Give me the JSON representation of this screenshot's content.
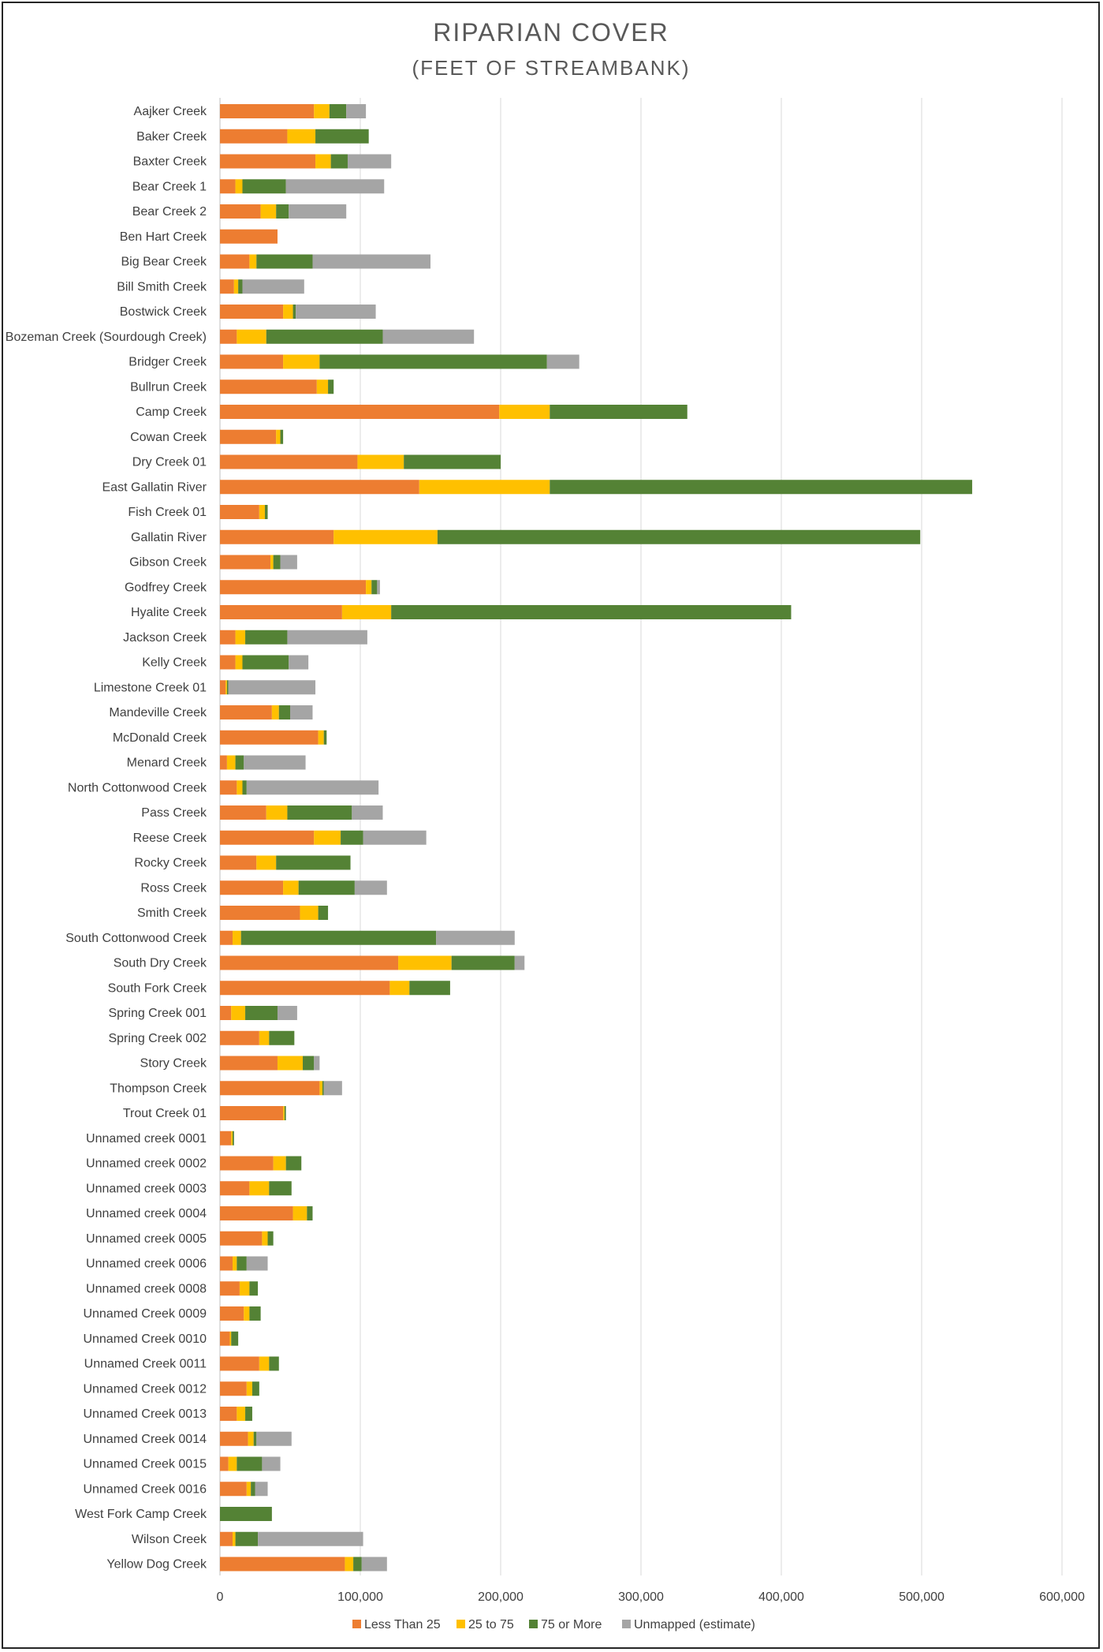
{
  "chart_data": {
    "type": "bar",
    "orientation": "horizontal",
    "stacked": true,
    "title": "RIPARIAN COVER",
    "subtitle": "(FEET OF STREAMBANK)",
    "xlabel": "",
    "ylabel": "",
    "xlim": [
      0,
      600000
    ],
    "x_ticks": [
      0,
      100000,
      200000,
      300000,
      400000,
      500000,
      600000
    ],
    "x_tick_labels": [
      "0",
      "100,000",
      "200,000",
      "300,000",
      "400,000",
      "500,000",
      "600,000"
    ],
    "grid": "vertical",
    "legend_position": "bottom",
    "categories": [
      "Aajker Creek",
      "Baker Creek",
      "Baxter Creek",
      "Bear Creek 1",
      "Bear Creek 2",
      "Ben Hart Creek",
      "Big Bear Creek",
      "Bill Smith Creek",
      "Bostwick Creek",
      "Bozeman Creek (Sourdough Creek)",
      "Bridger Creek",
      "Bullrun Creek",
      "Camp Creek",
      "Cowan Creek",
      "Dry Creek 01",
      "East Gallatin River",
      "Fish Creek 01",
      "Gallatin River",
      "Gibson Creek",
      "Godfrey Creek",
      "Hyalite Creek",
      "Jackson Creek",
      "Kelly Creek",
      "Limestone Creek 01",
      "Mandeville Creek",
      "McDonald Creek",
      "Menard Creek",
      "North Cottonwood Creek",
      "Pass Creek",
      "Reese Creek",
      "Rocky Creek",
      "Ross Creek",
      "Smith Creek",
      "South Cottonwood Creek",
      "South Dry Creek",
      "South Fork Creek",
      "Spring Creek 001",
      "Spring Creek 002",
      "Story Creek",
      "Thompson Creek",
      "Trout Creek 01",
      "Unnamed creek 0001",
      "Unnamed creek 0002",
      "Unnamed creek 0003",
      "Unnamed creek 0004",
      "Unnamed creek 0005",
      "Unnamed creek 0006",
      "Unnamed creek 0008",
      "Unnamed Creek 0009",
      "Unnamed Creek 0010",
      "Unnamed Creek 0011",
      "Unnamed Creek 0012",
      "Unnamed Creek 0013",
      "Unnamed Creek 0014",
      "Unnamed Creek 0015",
      "Unnamed Creek 0016",
      "West Fork Camp Creek",
      "Wilson Creek",
      "Yellow Dog Creek"
    ],
    "series": [
      {
        "name": "Less Than 25",
        "color": "#ED7D31",
        "values": [
          67000,
          48000,
          68000,
          11000,
          29000,
          41000,
          21000,
          10000,
          45000,
          12000,
          45000,
          69000,
          199000,
          40000,
          98000,
          142000,
          28000,
          81000,
          36000,
          104000,
          87000,
          11000,
          11000,
          4000,
          37000,
          70000,
          5000,
          12000,
          33000,
          67000,
          26000,
          45000,
          57000,
          9000,
          127000,
          121000,
          8000,
          28000,
          41000,
          71000,
          45000,
          8000,
          38000,
          21000,
          52000,
          30000,
          9000,
          14000,
          17000,
          7000,
          28000,
          19000,
          12000,
          20000,
          6000,
          19000,
          0,
          9000,
          89000
        ]
      },
      {
        "name": "25 to 75",
        "color": "#FFC000",
        "values": [
          11000,
          20000,
          11000,
          5000,
          11000,
          0,
          5000,
          3000,
          7000,
          21000,
          26000,
          8000,
          36000,
          3000,
          33000,
          93000,
          4000,
          74000,
          2000,
          4000,
          35000,
          7000,
          5000,
          1000,
          5000,
          4000,
          6000,
          4000,
          15000,
          19000,
          14000,
          11000,
          13000,
          6000,
          38000,
          14000,
          10000,
          7000,
          18000,
          2000,
          1000,
          1000,
          9000,
          14000,
          10000,
          4000,
          3000,
          7000,
          4000,
          1000,
          7000,
          4000,
          6000,
          4000,
          6000,
          3000,
          0,
          2000,
          6000
        ]
      },
      {
        "name": "75 or More",
        "color": "#548235",
        "values": [
          12000,
          38000,
          12000,
          31000,
          9000,
          0,
          40000,
          3000,
          2000,
          83000,
          162000,
          4000,
          98000,
          2000,
          69000,
          301000,
          2000,
          344000,
          5000,
          4000,
          285000,
          30000,
          33000,
          1000,
          8000,
          2000,
          6000,
          3000,
          46000,
          16000,
          53000,
          40000,
          7000,
          139000,
          45000,
          29000,
          23000,
          18000,
          8000,
          1000,
          1000,
          1000,
          11000,
          16000,
          4000,
          4000,
          7000,
          6000,
          8000,
          5000,
          7000,
          5000,
          5000,
          2000,
          18000,
          3000,
          37000,
          16000,
          6000
        ]
      },
      {
        "name": "Unmapped (estimate)",
        "color": "#A5A5A5",
        "values": [
          14000,
          0,
          31000,
          70000,
          41000,
          0,
          84000,
          44000,
          57000,
          65000,
          23000,
          0,
          0,
          0,
          0,
          0,
          0,
          0,
          12000,
          2000,
          0,
          57000,
          14000,
          62000,
          16000,
          0,
          44000,
          94000,
          22000,
          45000,
          0,
          23000,
          0,
          56000,
          7000,
          0,
          14000,
          0,
          4000,
          13000,
          0,
          0,
          0,
          0,
          0,
          0,
          15000,
          0,
          0,
          0,
          0,
          0,
          0,
          25000,
          13000,
          9000,
          0,
          75000,
          18000
        ]
      }
    ]
  }
}
